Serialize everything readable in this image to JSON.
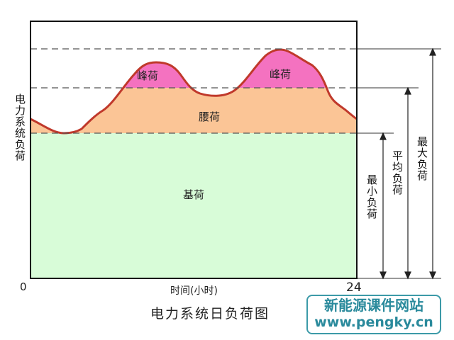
{
  "diagram": {
    "y_axis_label": "电力系统负荷",
    "x_axis_label": "时间(小时)",
    "x_start": "0",
    "x_end": "24",
    "title": "电力系统日负荷图",
    "regions": {
      "peak_1": "峰荷",
      "peak_2": "峰荷",
      "waist": "腰荷",
      "base": "基荷"
    },
    "measures": {
      "min": "最小负荷",
      "avg": "平均负荷",
      "max": "最大负荷"
    },
    "colors": {
      "peak": "#f472c0",
      "waist": "#fbc596",
      "base": "#d8fcd8",
      "curve": "#c0392b"
    }
  },
  "watermark": {
    "line1": "新能源课件网站",
    "line2": "www.pengky.cn"
  }
}
